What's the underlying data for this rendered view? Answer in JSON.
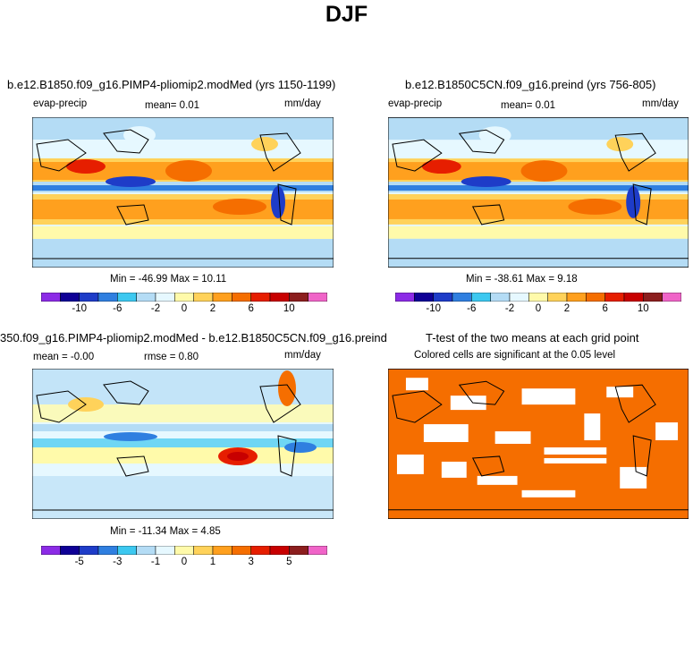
{
  "page_title": "DJF",
  "colorbar_colors": [
    "#8c2be6",
    "#0f0096",
    "#1e3cc8",
    "#2f7fe0",
    "#3cc8f0",
    "#b4dcf5",
    "#e6f8ff",
    "#fffaaa",
    "#ffd25a",
    "#ffa01e",
    "#f56e00",
    "#e61e00",
    "#c80000",
    "#8c1e1e",
    "#f064c8"
  ],
  "panels": [
    {
      "title": "b.e12.B1850.f09_g16.PIMP4-pliomip2.modMed (yrs 1150-1199)",
      "left_label": "evap-precip",
      "center_label": "mean=   0.01",
      "right_label": "mm/day",
      "minmax": "Min = -46.99  Max =   10.11",
      "colorbar_ticks": [
        "-10",
        "-6",
        "-2",
        "0",
        "2",
        "6",
        "10"
      ]
    },
    {
      "title": "b.e12.B1850C5CN.f09_g16.preind (yrs 756-805)",
      "left_label": "evap-precip",
      "center_label": "mean=   0.01",
      "right_label": "mm/day",
      "minmax": "Min = -38.61  Max =   9.18",
      "colorbar_ticks": [
        "-10",
        "-6",
        "-2",
        "0",
        "2",
        "6",
        "10"
      ]
    },
    {
      "title": "350.f09_g16.PIMP4-pliomip2.modMed - b.e12.B1850C5CN.f09_g16.preind",
      "left_label": "mean =  -0.00",
      "center_label": "rmse =   0.80",
      "right_label": "mm/day",
      "minmax": "Min = -11.34  Max =   4.85",
      "colorbar_ticks": [
        "-5",
        "-3",
        "-1",
        "0",
        "1",
        "3",
        "5"
      ]
    },
    {
      "title": "T-test of the two means at each grid point",
      "subtitle": "Colored cells are significant at the 0.05 level"
    }
  ]
}
